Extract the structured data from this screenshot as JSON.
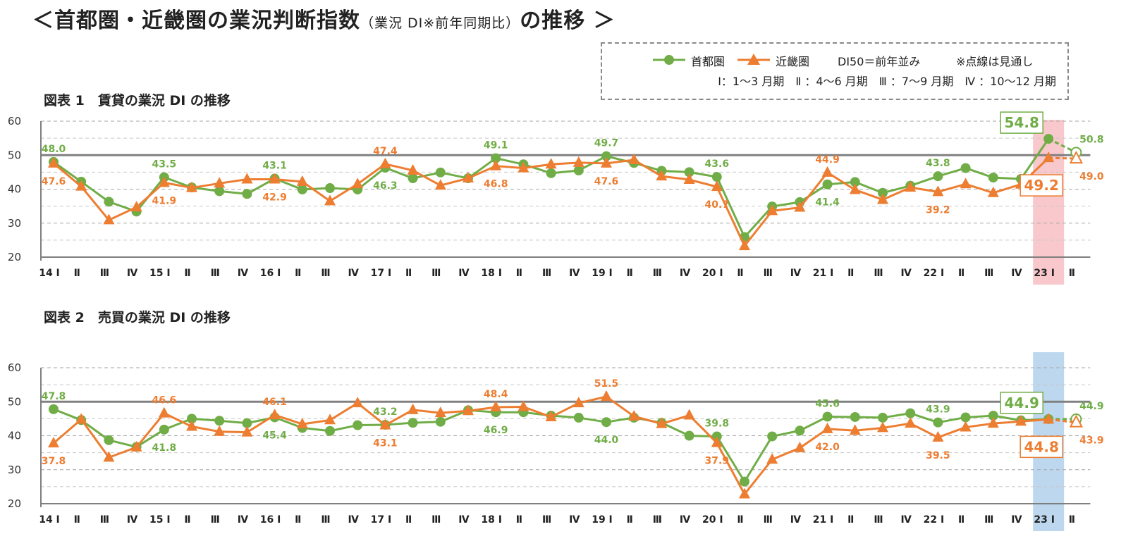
{
  "page": {
    "title_a": "＜首都圏・近畿圏の業況判断指数",
    "title_b": "（業況 DI※前年同期比）",
    "title_c": "の推移 ＞"
  },
  "legend": {
    "series1": "首都圏",
    "series2": "近畿圏",
    "note1": "DI50＝前年並み",
    "note2": "※点線は見通し",
    "quarters": "Ⅰ：1〜3 月期　Ⅱ ：4〜6 月期　Ⅲ ：7〜9 月期　Ⅳ ：10〜12 月期"
  },
  "colors": {
    "green": "#70ad47",
    "orange": "#ed7d31",
    "red_band": "#f8c8cc",
    "blue_band": "#bdd7ee",
    "axis": "#7f7f7f"
  },
  "chart_data": [
    {
      "type": "line",
      "title": "図表 1　賃貸の業況 DI の推移",
      "ylim": [
        20,
        60
      ],
      "yticks": [
        20,
        30,
        40,
        50,
        60
      ],
      "categories": [
        "14 Ⅰ",
        "Ⅱ",
        "Ⅲ",
        "Ⅳ",
        "15 Ⅰ",
        "Ⅱ",
        "Ⅲ",
        "Ⅳ",
        "16 Ⅰ",
        "Ⅱ",
        "Ⅲ",
        "Ⅳ",
        "17 Ⅰ",
        "Ⅱ",
        "Ⅲ",
        "Ⅳ",
        "18 Ⅰ",
        "Ⅱ",
        "Ⅲ",
        "Ⅳ",
        "19 Ⅰ",
        "Ⅱ",
        "Ⅲ",
        "Ⅳ",
        "20 Ⅰ",
        "Ⅱ",
        "Ⅲ",
        "Ⅳ",
        "21 Ⅰ",
        "Ⅱ",
        "Ⅲ",
        "Ⅳ",
        "22 Ⅰ",
        "Ⅱ",
        "Ⅲ",
        "Ⅳ",
        "23 Ⅰ",
        "Ⅱ"
      ],
      "highlight_index": 36,
      "series": [
        {
          "name": "首都圏",
          "values": [
            48.0,
            42.2,
            36.3,
            33.4,
            43.5,
            40.5,
            39.4,
            38.6,
            43.1,
            39.9,
            40.3,
            39.9,
            46.3,
            43.2,
            44.9,
            43.2,
            49.1,
            47.3,
            44.7,
            45.5,
            49.7,
            47.7,
            45.4,
            45.0,
            43.6,
            25.9,
            34.9,
            36.2,
            41.4,
            42.1,
            38.9,
            41.0,
            43.8,
            46.2,
            43.4,
            43.0,
            54.8,
            50.8
          ]
        },
        {
          "name": "近畿圏",
          "values": [
            47.6,
            40.8,
            30.9,
            34.7,
            41.9,
            40.4,
            41.7,
            42.9,
            42.9,
            42.2,
            36.5,
            41.5,
            47.4,
            45.5,
            41.1,
            43.2,
            46.8,
            46.2,
            47.3,
            47.8,
            47.6,
            48.6,
            43.8,
            42.8,
            40.7,
            23.3,
            33.6,
            34.6,
            44.9,
            39.8,
            36.9,
            40.5,
            39.2,
            41.5,
            38.9,
            41.4,
            49.2,
            49.0
          ]
        }
      ],
      "labels": [
        {
          "s": 0,
          "i": 0,
          "t": "48.0"
        },
        {
          "s": 1,
          "i": 0,
          "t": "47.6"
        },
        {
          "s": 0,
          "i": 4,
          "t": "43.5"
        },
        {
          "s": 1,
          "i": 4,
          "t": "41.9"
        },
        {
          "s": 0,
          "i": 8,
          "t": "43.1"
        },
        {
          "s": 1,
          "i": 8,
          "t": "42.9"
        },
        {
          "s": 0,
          "i": 12,
          "t": "46.3"
        },
        {
          "s": 1,
          "i": 12,
          "t": "47.4"
        },
        {
          "s": 0,
          "i": 16,
          "t": "49.1"
        },
        {
          "s": 1,
          "i": 16,
          "t": "46.8"
        },
        {
          "s": 0,
          "i": 20,
          "t": "49.7"
        },
        {
          "s": 1,
          "i": 20,
          "t": "47.6"
        },
        {
          "s": 0,
          "i": 24,
          "t": "43.6"
        },
        {
          "s": 1,
          "i": 24,
          "t": "40.7"
        },
        {
          "s": 0,
          "i": 28,
          "t": "41.4"
        },
        {
          "s": 1,
          "i": 28,
          "t": "44.9"
        },
        {
          "s": 0,
          "i": 32,
          "t": "43.8"
        },
        {
          "s": 1,
          "i": 32,
          "t": "39.2"
        },
        {
          "s": 0,
          "i": 36,
          "t": "54.8",
          "box": true
        },
        {
          "s": 1,
          "i": 36,
          "t": "49.2",
          "box": true
        },
        {
          "s": 0,
          "i": 37,
          "t": "50.8"
        },
        {
          "s": 1,
          "i": 37,
          "t": "49.0"
        }
      ]
    },
    {
      "type": "line",
      "title": "図表 2　売買の業況 DI の推移",
      "ylim": [
        20,
        60
      ],
      "yticks": [
        20,
        30,
        40,
        50,
        60
      ],
      "categories": [
        "14 Ⅰ",
        "Ⅱ",
        "Ⅲ",
        "Ⅳ",
        "15 Ⅰ",
        "Ⅱ",
        "Ⅲ",
        "Ⅳ",
        "16 Ⅰ",
        "Ⅱ",
        "Ⅲ",
        "Ⅳ",
        "17 Ⅰ",
        "Ⅱ",
        "Ⅲ",
        "Ⅳ",
        "18 Ⅰ",
        "Ⅱ",
        "Ⅲ",
        "Ⅳ",
        "19 Ⅰ",
        "Ⅱ",
        "Ⅲ",
        "Ⅳ",
        "20 Ⅰ",
        "Ⅱ",
        "Ⅲ",
        "Ⅳ",
        "21 Ⅰ",
        "Ⅱ",
        "Ⅲ",
        "Ⅳ",
        "22 Ⅰ",
        "Ⅱ",
        "Ⅲ",
        "Ⅳ",
        "23 Ⅰ",
        "Ⅱ"
      ],
      "highlight_index": 36,
      "series": [
        {
          "name": "首都圏",
          "values": [
            47.8,
            44.6,
            38.7,
            36.7,
            41.8,
            45.0,
            44.4,
            43.7,
            45.4,
            42.3,
            41.4,
            43.1,
            43.2,
            43.8,
            44.1,
            47.5,
            46.9,
            46.9,
            45.9,
            45.3,
            44.0,
            45.3,
            43.8,
            40.0,
            39.8,
            26.5,
            39.8,
            41.5,
            45.6,
            45.5,
            45.3,
            46.6,
            43.9,
            45.4,
            45.9,
            44.5,
            44.9,
            44.9
          ]
        },
        {
          "name": "近畿圏",
          "values": [
            37.8,
            44.8,
            33.6,
            36.6,
            46.6,
            42.7,
            41.2,
            41.0,
            46.1,
            43.4,
            44.6,
            49.6,
            43.1,
            47.6,
            46.7,
            47.3,
            48.4,
            48.5,
            45.5,
            49.6,
            51.5,
            45.7,
            43.5,
            46.0,
            37.9,
            22.8,
            33.0,
            36.4,
            42.0,
            41.5,
            42.3,
            43.6,
            39.5,
            42.5,
            43.6,
            44.2,
            44.8,
            43.9
          ]
        }
      ],
      "labels": [
        {
          "s": 0,
          "i": 0,
          "t": "47.8"
        },
        {
          "s": 1,
          "i": 0,
          "t": "37.8"
        },
        {
          "s": 0,
          "i": 4,
          "t": "41.8"
        },
        {
          "s": 1,
          "i": 4,
          "t": "46.6"
        },
        {
          "s": 0,
          "i": 8,
          "t": "45.4"
        },
        {
          "s": 1,
          "i": 8,
          "t": "46.1"
        },
        {
          "s": 0,
          "i": 12,
          "t": "43.2"
        },
        {
          "s": 1,
          "i": 12,
          "t": "43.1"
        },
        {
          "s": 0,
          "i": 16,
          "t": "46.9"
        },
        {
          "s": 1,
          "i": 16,
          "t": "48.4"
        },
        {
          "s": 0,
          "i": 20,
          "t": "44.0"
        },
        {
          "s": 1,
          "i": 20,
          "t": "51.5"
        },
        {
          "s": 0,
          "i": 24,
          "t": "39.8"
        },
        {
          "s": 1,
          "i": 24,
          "t": "37.9"
        },
        {
          "s": 0,
          "i": 28,
          "t": "45.6"
        },
        {
          "s": 1,
          "i": 28,
          "t": "42.0"
        },
        {
          "s": 0,
          "i": 32,
          "t": "43.9"
        },
        {
          "s": 1,
          "i": 32,
          "t": "39.5"
        },
        {
          "s": 0,
          "i": 36,
          "t": "44.9",
          "box": true
        },
        {
          "s": 1,
          "i": 36,
          "t": "44.8",
          "box": true
        },
        {
          "s": 0,
          "i": 37,
          "t": "44.9"
        },
        {
          "s": 1,
          "i": 37,
          "t": "43.9"
        }
      ]
    }
  ]
}
